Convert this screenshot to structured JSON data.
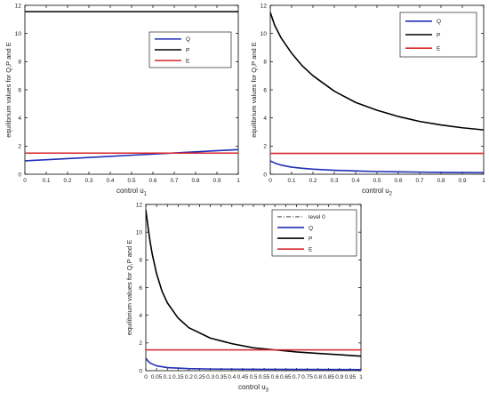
{
  "chart_data": [
    {
      "type": "line",
      "xlabel": "control u",
      "xlabel_sub": "1",
      "ylabel": "equilibrium values for Q,P and E",
      "xlim": [
        0,
        1
      ],
      "ylim": [
        0,
        12
      ],
      "xticks": [
        "0",
        "0.1",
        "0.2",
        "0.3",
        "0.4",
        "0.5",
        "0.6",
        "0.7",
        "0.8",
        "0.9",
        "1"
      ],
      "yticks": [
        "0",
        "2",
        "4",
        "6",
        "8",
        "10",
        "12"
      ],
      "legend_position": "upper-right",
      "series": [
        {
          "name": "Q",
          "color": "#1f2fb5",
          "x": [
            0,
            0.25,
            0.5,
            0.75,
            1
          ],
          "y": [
            0.95,
            1.15,
            1.35,
            1.55,
            1.75
          ]
        },
        {
          "name": "P",
          "color": "#000000",
          "x": [
            0,
            0.25,
            0.5,
            0.75,
            1
          ],
          "y": [
            11.55,
            11.55,
            11.55,
            11.55,
            11.55
          ]
        },
        {
          "name": "E",
          "color": "#d6252a",
          "x": [
            0,
            0.25,
            0.5,
            0.75,
            1
          ],
          "y": [
            1.5,
            1.5,
            1.5,
            1.5,
            1.5
          ]
        }
      ]
    },
    {
      "type": "line",
      "xlabel": "control u",
      "xlabel_sub": "2",
      "ylabel": "equilibrium values for Q,P and E",
      "xlim": [
        0,
        1
      ],
      "ylim": [
        0,
        12
      ],
      "xticks": [
        "0",
        "0.1",
        "0.2",
        "0.3",
        "0.4",
        "0.5",
        "0.6",
        "0.7",
        "0.8",
        "0.9",
        "1"
      ],
      "yticks": [
        "0",
        "2",
        "4",
        "6",
        "8",
        "10",
        "12"
      ],
      "legend_position": "upper-right",
      "series": [
        {
          "name": "Q",
          "color": "#1f2fb5",
          "x": [
            0,
            0.02,
            0.05,
            0.1,
            0.15,
            0.2,
            0.3,
            0.4,
            0.5,
            0.6,
            0.7,
            0.8,
            0.9,
            1
          ],
          "y": [
            0.95,
            0.8,
            0.65,
            0.5,
            0.42,
            0.36,
            0.28,
            0.23,
            0.19,
            0.17,
            0.15,
            0.13,
            0.12,
            0.11
          ]
        },
        {
          "name": "P",
          "color": "#000000",
          "x": [
            0,
            0.02,
            0.05,
            0.1,
            0.15,
            0.2,
            0.3,
            0.4,
            0.5,
            0.6,
            0.7,
            0.8,
            0.9,
            1
          ],
          "y": [
            11.5,
            10.6,
            9.7,
            8.6,
            7.7,
            7.0,
            5.9,
            5.1,
            4.55,
            4.1,
            3.75,
            3.5,
            3.3,
            3.15
          ]
        },
        {
          "name": "E",
          "color": "#d6252a",
          "x": [
            0,
            0.5,
            1
          ],
          "y": [
            1.48,
            1.48,
            1.48
          ]
        }
      ]
    },
    {
      "type": "line",
      "xlabel": "control u",
      "xlabel_sub": "3",
      "ylabel": "equilibrium values for Q,P and E",
      "xlim": [
        0,
        1
      ],
      "ylim": [
        0,
        12
      ],
      "xticks": [
        "0",
        "0.05",
        "0.1",
        "0.15",
        "0.2",
        "0.25",
        "0.3",
        "0.35",
        "0.4",
        "0.45",
        "0.5",
        "0.55",
        "0.6",
        "0.65",
        "0.7",
        "0.75",
        "0.8",
        "0.85",
        "0.9",
        "0.95",
        "1"
      ],
      "yticks": [
        "0",
        "2",
        "4",
        "6",
        "8",
        "10",
        "12"
      ],
      "legend_position": "upper-right",
      "series": [
        {
          "name": "level 0",
          "color": "#444444",
          "dash": "5,2,1,2",
          "x": [
            0,
            0.5,
            1
          ],
          "y": [
            0,
            0,
            0
          ]
        },
        {
          "name": "Q",
          "color": "#1f2fb5",
          "x": [
            0,
            0.01,
            0.02,
            0.05,
            0.1,
            0.2,
            0.3,
            0.5,
            0.7,
            1
          ],
          "y": [
            0.9,
            0.7,
            0.55,
            0.35,
            0.22,
            0.15,
            0.12,
            0.1,
            0.09,
            0.08
          ]
        },
        {
          "name": "P",
          "color": "#000000",
          "x": [
            0,
            0.01,
            0.02,
            0.03,
            0.05,
            0.075,
            0.1,
            0.15,
            0.2,
            0.3,
            0.4,
            0.5,
            0.6,
            0.7,
            0.8,
            0.9,
            1
          ],
          "y": [
            11.6,
            10.4,
            9.3,
            8.4,
            7.0,
            5.75,
            4.9,
            3.8,
            3.1,
            2.35,
            1.95,
            1.65,
            1.5,
            1.35,
            1.25,
            1.15,
            1.05
          ]
        },
        {
          "name": "E",
          "color": "#d6252a",
          "x": [
            0,
            0.5,
            1
          ],
          "y": [
            1.5,
            1.5,
            1.5
          ]
        }
      ]
    }
  ]
}
